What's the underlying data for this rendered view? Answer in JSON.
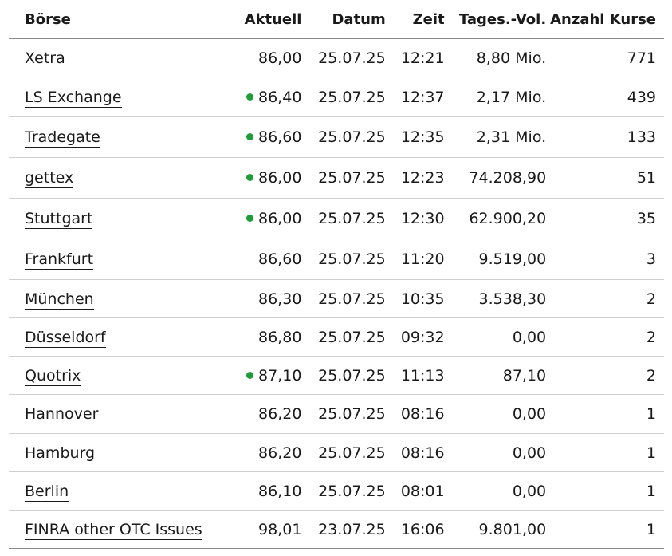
{
  "colors": {
    "live_dot": "#1f9d3a"
  },
  "headers": {
    "boerse": "Börse",
    "aktuell": "Aktuell",
    "datum": "Datum",
    "zeit": "Zeit",
    "volumen": "Tages.-Vol.",
    "anzahl": "Anzahl Kurse"
  },
  "rows": [
    {
      "name": "Xetra",
      "link": false,
      "live": false,
      "aktuell": "86,00",
      "datum": "25.07.25",
      "zeit": "12:21",
      "volumen": "8,80 Mio.",
      "anzahl": "771"
    },
    {
      "name": "LS Exchange",
      "link": true,
      "live": true,
      "aktuell": "86,40",
      "datum": "25.07.25",
      "zeit": "12:37",
      "volumen": "2,17 Mio.",
      "anzahl": "439"
    },
    {
      "name": "Tradegate",
      "link": true,
      "live": true,
      "aktuell": "86,60",
      "datum": "25.07.25",
      "zeit": "12:35",
      "volumen": "2,31 Mio.",
      "anzahl": "133"
    },
    {
      "name": "gettex",
      "link": true,
      "live": true,
      "aktuell": "86,00",
      "datum": "25.07.25",
      "zeit": "12:23",
      "volumen": "74.208,90",
      "anzahl": "51"
    },
    {
      "name": "Stuttgart",
      "link": true,
      "live": true,
      "aktuell": "86,00",
      "datum": "25.07.25",
      "zeit": "12:30",
      "volumen": "62.900,20",
      "anzahl": "35"
    },
    {
      "name": "Frankfurt",
      "link": true,
      "live": false,
      "aktuell": "86,60",
      "datum": "25.07.25",
      "zeit": "11:20",
      "volumen": "9.519,00",
      "anzahl": "3"
    },
    {
      "name": "München",
      "link": true,
      "live": false,
      "aktuell": "86,30",
      "datum": "25.07.25",
      "zeit": "10:35",
      "volumen": "3.538,30",
      "anzahl": "2"
    },
    {
      "name": "Düsseldorf",
      "link": true,
      "live": false,
      "aktuell": "86,80",
      "datum": "25.07.25",
      "zeit": "09:32",
      "volumen": "0,00",
      "anzahl": "2"
    },
    {
      "name": "Quotrix",
      "link": true,
      "live": true,
      "aktuell": "87,10",
      "datum": "25.07.25",
      "zeit": "11:13",
      "volumen": "87,10",
      "anzahl": "2"
    },
    {
      "name": "Hannover",
      "link": true,
      "live": false,
      "aktuell": "86,20",
      "datum": "25.07.25",
      "zeit": "08:16",
      "volumen": "0,00",
      "anzahl": "1"
    },
    {
      "name": "Hamburg",
      "link": true,
      "live": false,
      "aktuell": "86,20",
      "datum": "25.07.25",
      "zeit": "08:16",
      "volumen": "0,00",
      "anzahl": "1"
    },
    {
      "name": "Berlin",
      "link": true,
      "live": false,
      "aktuell": "86,10",
      "datum": "25.07.25",
      "zeit": "08:01",
      "volumen": "0,00",
      "anzahl": "1"
    },
    {
      "name": "FINRA other OTC Issues",
      "link": true,
      "live": false,
      "aktuell": "98,01",
      "datum": "23.07.25",
      "zeit": "16:06",
      "volumen": "9.801,00",
      "anzahl": "1"
    }
  ]
}
